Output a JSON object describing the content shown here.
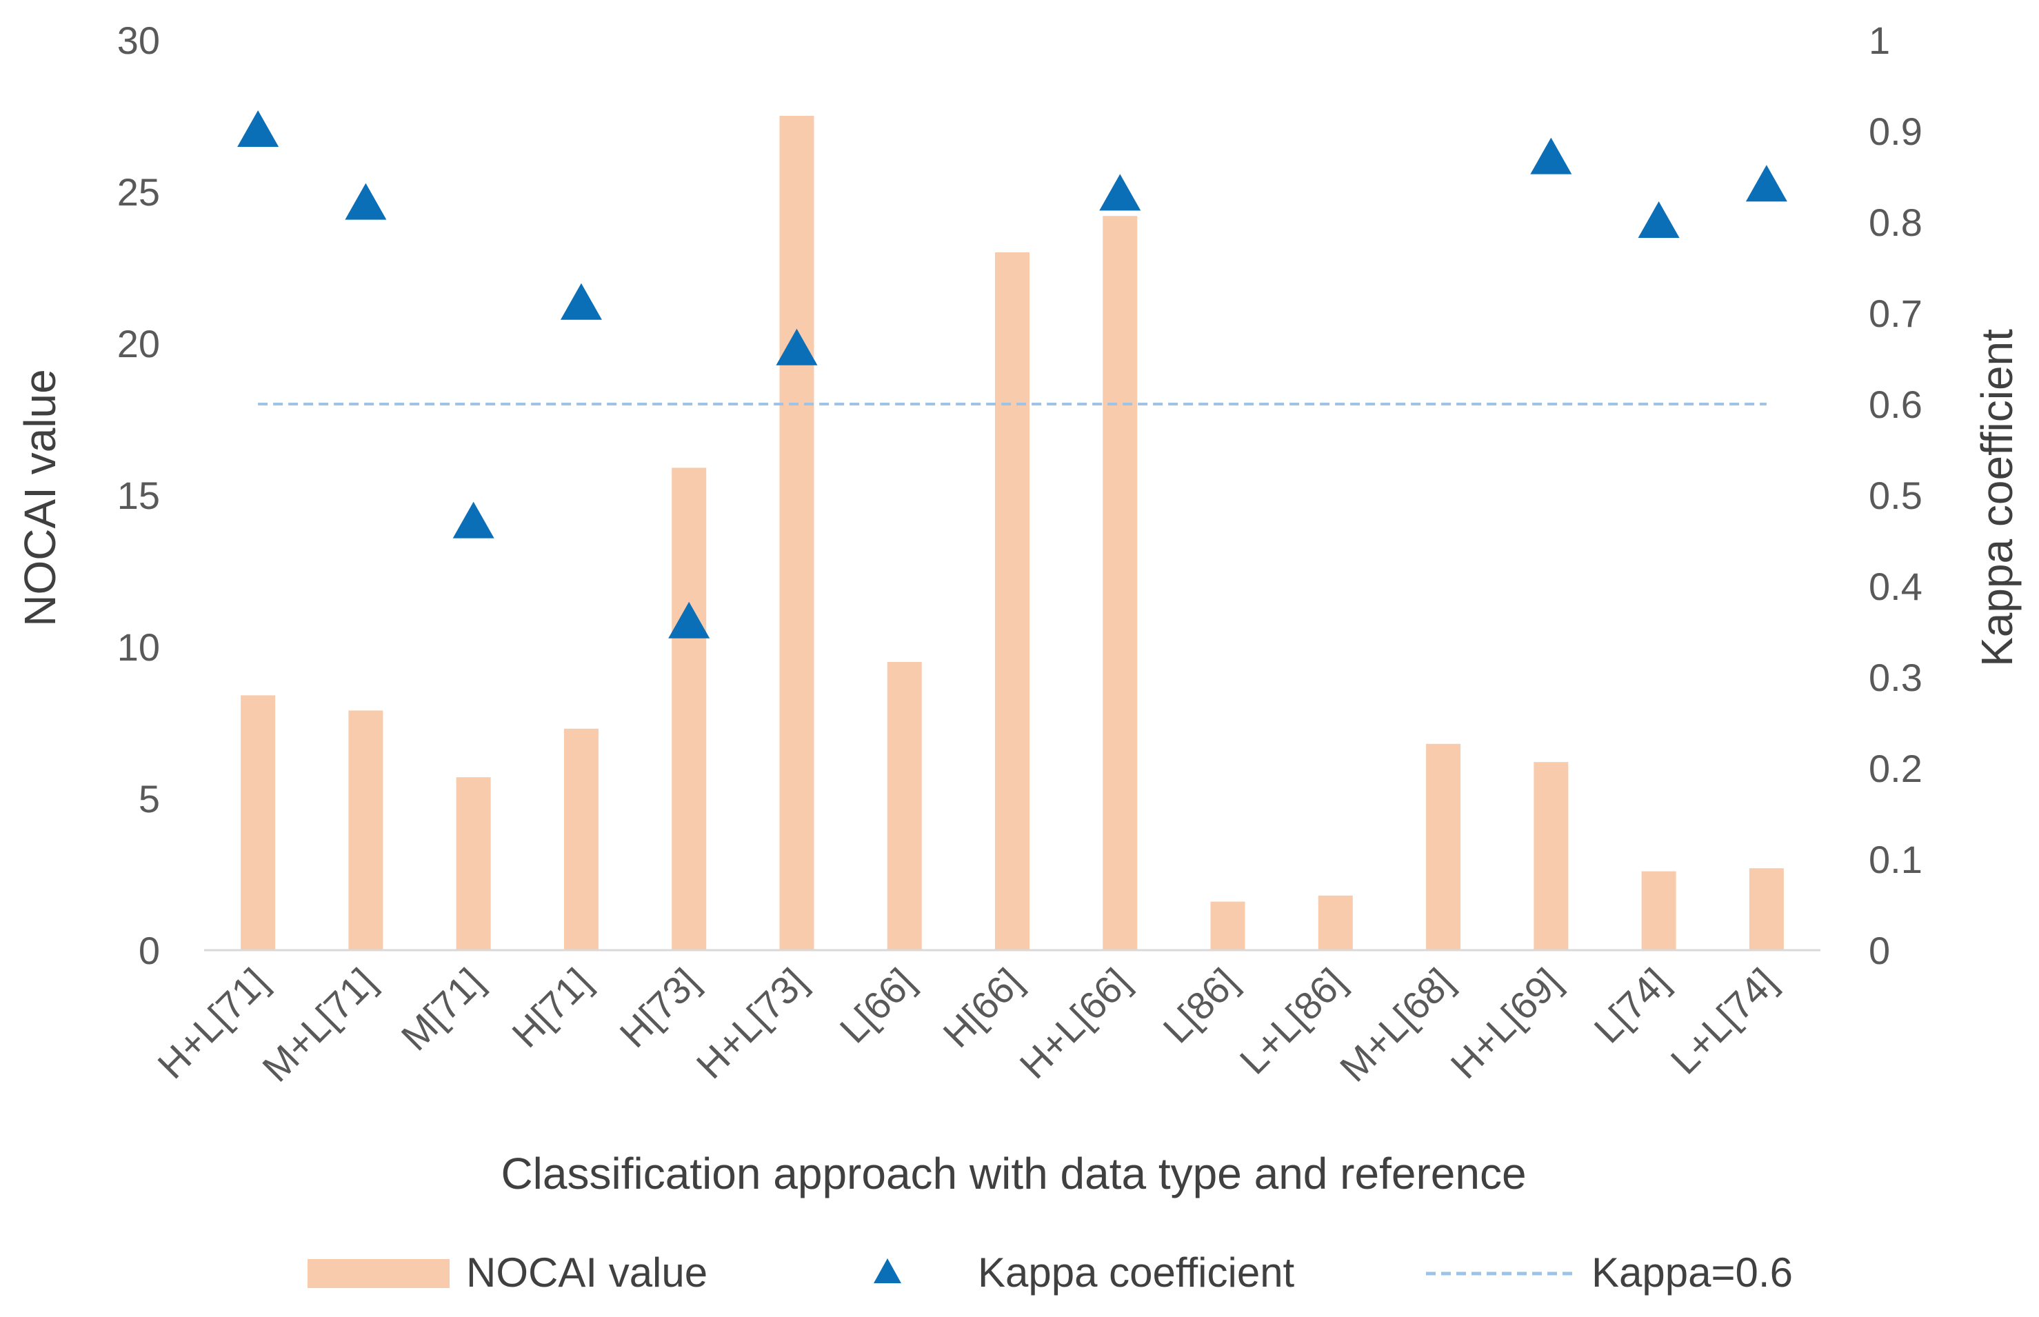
{
  "chart_data": {
    "type": "bar",
    "title": "",
    "xlabel": "Classification approach with data type and reference",
    "ylabel": "NOCAI value",
    "y2label": "Kappa coefficient",
    "categories": [
      "H+L[71]",
      "M+L[71]",
      "M[71]",
      "H[71]",
      "H[73]",
      "H+L[73]",
      "L[66]",
      "H[66]",
      "H+L[66]",
      "L[86]",
      "L+L[86]",
      "M+L[68]",
      "H+L[69]",
      "L[74]",
      "L+L[74]"
    ],
    "ylim": [
      0,
      30
    ],
    "y2lim": [
      0,
      1
    ],
    "yticks": [
      "0",
      "5",
      "10",
      "15",
      "20",
      "25",
      "30"
    ],
    "y2ticks": [
      "0",
      "0.1",
      "0.2",
      "0.3",
      "0.4",
      "0.5",
      "0.6",
      "0.7",
      "0.8",
      "0.9",
      "1"
    ],
    "series": [
      {
        "name": "NOCAI value",
        "kind": "bar",
        "axis": "left",
        "color": "#F8CBAD",
        "values": [
          8.4,
          7.9,
          5.7,
          7.3,
          15.9,
          27.5,
          9.5,
          23.0,
          24.2,
          1.6,
          1.8,
          6.8,
          6.2,
          2.6,
          2.7
        ]
      },
      {
        "name": "Kappa coefficient",
        "kind": "scatter",
        "marker": "triangle",
        "axis": "right",
        "color": "#0B6FB8",
        "values": [
          0.9,
          0.82,
          0.47,
          0.71,
          0.36,
          0.66,
          null,
          null,
          0.83,
          null,
          null,
          null,
          0.87,
          0.8,
          0.84
        ]
      },
      {
        "name": "Kappa=0.6",
        "kind": "reference-line",
        "axis": "right",
        "color": "#9DC3E6",
        "value": 0.6
      }
    ],
    "legend_position": "bottom",
    "grid": false
  }
}
